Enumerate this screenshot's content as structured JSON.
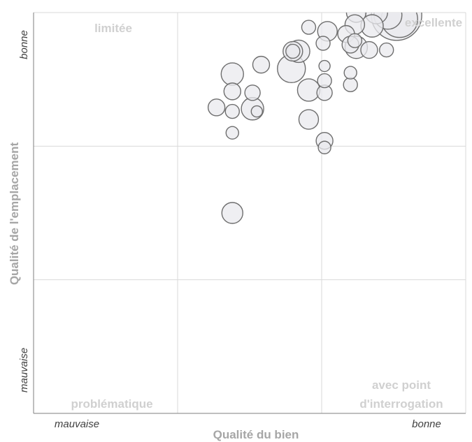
{
  "chart_data": {
    "type": "scatter",
    "xlabel": "Qualité du bien",
    "ylabel": "Qualité de l'emplacement",
    "xlim": [
      0,
      3
    ],
    "ylim": [
      0,
      3
    ],
    "x_ticks": [
      "mauvaise",
      "bonne"
    ],
    "y_ticks": [
      "mauvaise",
      "bonne"
    ],
    "grid": true,
    "quadrant_labels": {
      "top_left": "limitée",
      "top_right": "excellente",
      "bottom_left": "problématique",
      "bottom_right_line1": "avec point",
      "bottom_right_line2": "d'interrogation"
    },
    "bubble_color": "#e9e9ee",
    "bubble_stroke": "#6e6e6e",
    "points": [
      {
        "x": 2.24,
        "y": 3.0,
        "size": 14
      },
      {
        "x": 2.38,
        "y": 3.0,
        "size": 16
      },
      {
        "x": 2.46,
        "y": 2.98,
        "size": 20
      },
      {
        "x": 2.52,
        "y": 2.98,
        "size": 36
      },
      {
        "x": 2.54,
        "y": 2.95,
        "size": 26
      },
      {
        "x": 2.35,
        "y": 2.9,
        "size": 16
      },
      {
        "x": 2.23,
        "y": 2.91,
        "size": 14
      },
      {
        "x": 1.91,
        "y": 2.89,
        "size": 10
      },
      {
        "x": 2.04,
        "y": 2.86,
        "size": 14
      },
      {
        "x": 2.17,
        "y": 2.84,
        "size": 12
      },
      {
        "x": 2.2,
        "y": 2.76,
        "size": 12
      },
      {
        "x": 2.24,
        "y": 2.74,
        "size": 16
      },
      {
        "x": 2.33,
        "y": 2.72,
        "size": 12
      },
      {
        "x": 2.45,
        "y": 2.72,
        "size": 10
      },
      {
        "x": 2.23,
        "y": 2.79,
        "size": 10
      },
      {
        "x": 2.01,
        "y": 2.77,
        "size": 10
      },
      {
        "x": 1.84,
        "y": 2.71,
        "size": 16
      },
      {
        "x": 1.8,
        "y": 2.71,
        "size": 14
      },
      {
        "x": 1.8,
        "y": 2.71,
        "size": 10
      },
      {
        "x": 2.02,
        "y": 2.6,
        "size": 8
      },
      {
        "x": 1.58,
        "y": 2.61,
        "size": 12
      },
      {
        "x": 1.79,
        "y": 2.58,
        "size": 20
      },
      {
        "x": 1.38,
        "y": 2.54,
        "size": 16
      },
      {
        "x": 2.02,
        "y": 2.49,
        "size": 10
      },
      {
        "x": 2.2,
        "y": 2.55,
        "size": 9
      },
      {
        "x": 2.2,
        "y": 2.46,
        "size": 10
      },
      {
        "x": 1.91,
        "y": 2.42,
        "size": 16
      },
      {
        "x": 2.02,
        "y": 2.4,
        "size": 11
      },
      {
        "x": 1.38,
        "y": 2.41,
        "size": 12
      },
      {
        "x": 1.52,
        "y": 2.4,
        "size": 11
      },
      {
        "x": 1.52,
        "y": 2.28,
        "size": 16
      },
      {
        "x": 1.27,
        "y": 2.29,
        "size": 12
      },
      {
        "x": 1.38,
        "y": 2.26,
        "size": 10
      },
      {
        "x": 1.55,
        "y": 2.26,
        "size": 8
      },
      {
        "x": 1.91,
        "y": 2.2,
        "size": 14
      },
      {
        "x": 1.38,
        "y": 2.1,
        "size": 9
      },
      {
        "x": 2.02,
        "y": 2.04,
        "size": 12
      },
      {
        "x": 2.02,
        "y": 1.99,
        "size": 9
      },
      {
        "x": 1.38,
        "y": 1.5,
        "size": 15
      }
    ]
  }
}
